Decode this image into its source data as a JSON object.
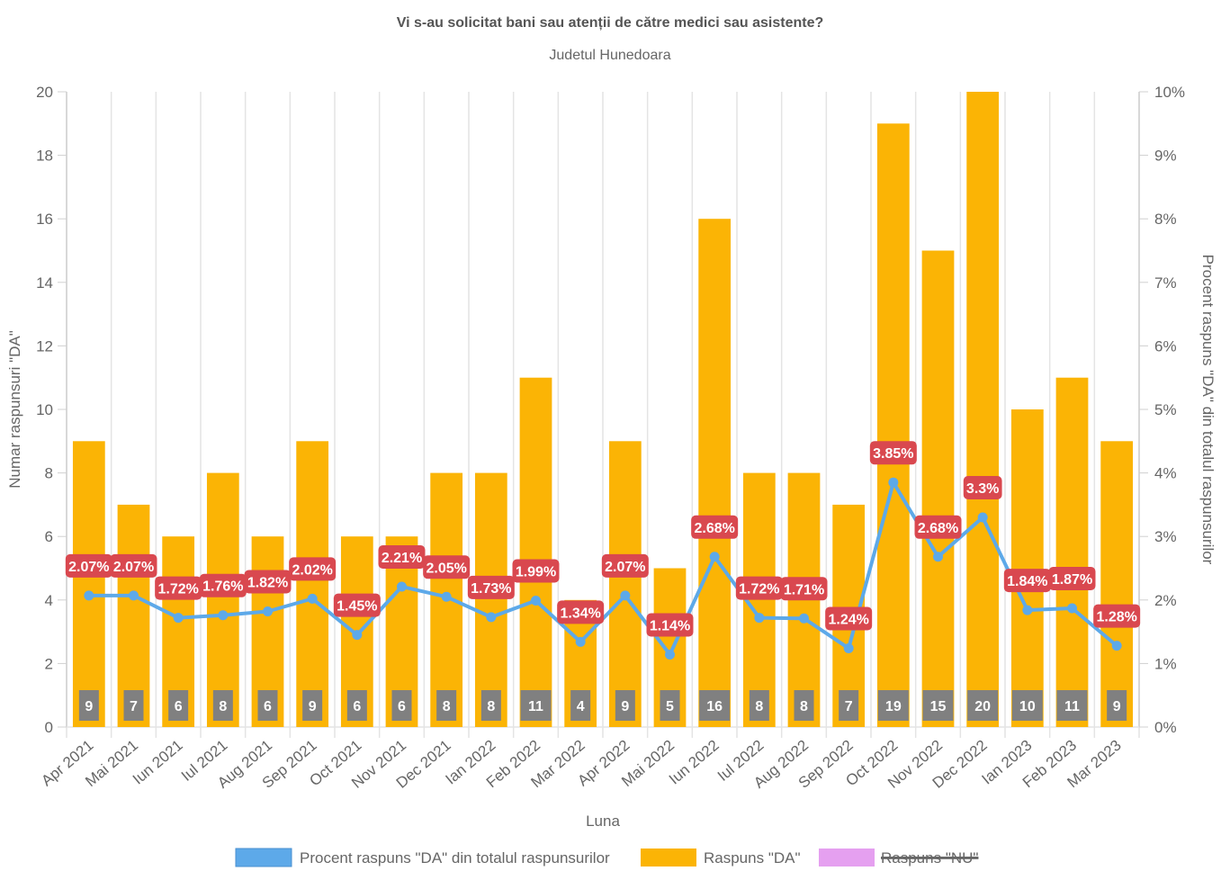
{
  "chart_data": {
    "type": "bar",
    "title": "Vi s-au solicitat bani sau atenții de către medici sau asistente?",
    "subtitle": "Judetul Hunedoara",
    "xlabel": "Luna",
    "ylabel": "Numar raspunsuri \"DA\"",
    "y2label": "Procent raspuns \"DA\" din totalul raspunsurilor",
    "ylim": [
      0,
      20
    ],
    "y2lim": [
      0,
      10
    ],
    "yticks": [
      "0",
      "2",
      "4",
      "6",
      "8",
      "10",
      "12",
      "14",
      "16",
      "18",
      "20"
    ],
    "y2ticks": [
      "0%",
      "1%",
      "2%",
      "3%",
      "4%",
      "5%",
      "6%",
      "7%",
      "8%",
      "9%",
      "10%"
    ],
    "grid": true,
    "legend_position": "bottom",
    "categories": [
      "Apr 2021",
      "Mai 2021",
      "Iun 2021",
      "Iul 2021",
      "Aug 2021",
      "Sep 2021",
      "Oct 2021",
      "Nov 2021",
      "Dec 2021",
      "Ian 2022",
      "Feb 2022",
      "Mar 2022",
      "Apr 2022",
      "Mai 2022",
      "Iun 2022",
      "Iul 2022",
      "Aug 2022",
      "Sep 2022",
      "Oct 2022",
      "Nov 2022",
      "Dec 2022",
      "Ian 2023",
      "Feb 2023",
      "Mar 2023"
    ],
    "series": [
      {
        "name": "Procent raspuns \"DA\" din totalul raspunsurilor",
        "type": "line",
        "axis": "right",
        "color": "#5DA9E9",
        "label_color": "#D9484F",
        "values": [
          2.07,
          2.07,
          1.72,
          1.76,
          1.82,
          2.02,
          1.45,
          2.21,
          2.05,
          1.73,
          1.99,
          1.34,
          2.07,
          1.14,
          2.68,
          1.72,
          1.71,
          1.24,
          3.85,
          2.68,
          3.3,
          1.84,
          1.87,
          1.28
        ],
        "labels": [
          "2.07%",
          "2.07%",
          "1.72%",
          "1.76%",
          "1.82%",
          "2.02%",
          "1.45%",
          "2.21%",
          "2.05%",
          "1.73%",
          "1.99%",
          "1.34%",
          "2.07%",
          "1.14%",
          "2.68%",
          "1.72%",
          "1.71%",
          "1.24%",
          "3.85%",
          "2.68%",
          "3.3%",
          "1.84%",
          "1.87%",
          "1.28%"
        ]
      },
      {
        "name": "Raspuns \"DA\"",
        "type": "bar",
        "axis": "left",
        "color": "#FBB405",
        "label_color": "#808080",
        "values": [
          9,
          7,
          6,
          8,
          6,
          9,
          6,
          6,
          8,
          8,
          11,
          4,
          9,
          5,
          16,
          8,
          8,
          7,
          19,
          15,
          20,
          10,
          11,
          9
        ]
      },
      {
        "name": "Raspuns \"NU\"",
        "type": "bar",
        "color": "#E5A0F0",
        "hidden": true,
        "values": []
      }
    ]
  }
}
